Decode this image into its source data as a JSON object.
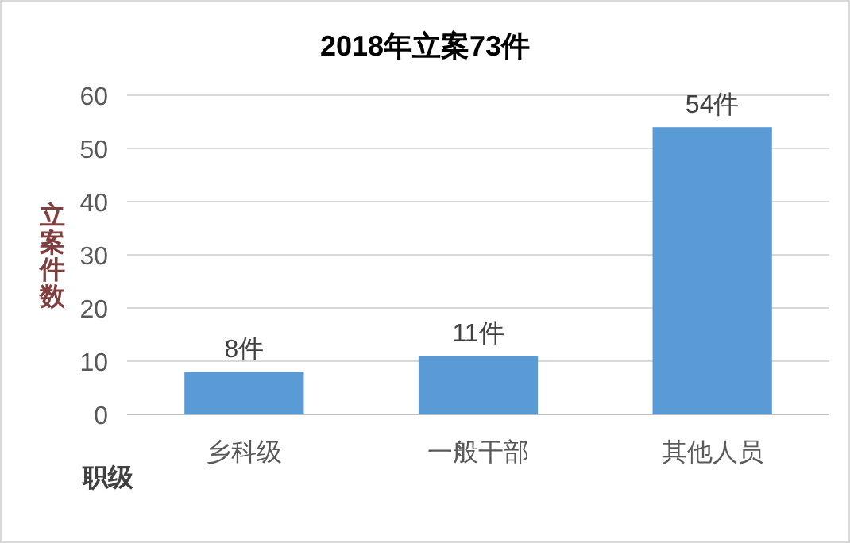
{
  "chart_data": {
    "type": "bar",
    "title": "2018年立案73件",
    "ylabel": "立案件数",
    "xlabel": "职级",
    "categories": [
      "乡科级",
      "一般干部",
      "其他人员"
    ],
    "values": [
      8,
      11,
      54
    ],
    "color": "#5b9bd5",
    "value_labels": [
      "8件",
      "11件",
      "54件"
    ],
    "ylim": [
      0,
      60
    ],
    "yticks": [
      0,
      10,
      20,
      30,
      40,
      50,
      60
    ],
    "grid": "y"
  }
}
